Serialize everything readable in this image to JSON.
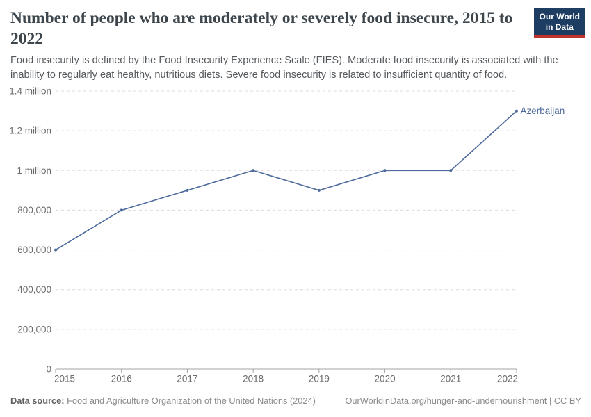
{
  "header": {
    "title": "Number of people who are moderately or severely food insecure, 2015 to 2022",
    "subtitle": "Food insecurity is defined by the Food Insecurity Experience Scale (FIES). Moderate food insecurity is associated with the inability to regularly eat healthy, nutritious diets. Severe food insecurity is related to insufficient quantity of food.",
    "logo": {
      "line1": "Our World",
      "line2": "in Data"
    }
  },
  "chart_data": {
    "type": "line",
    "title": "Number of people who are moderately or severely food insecure, 2015 to 2022",
    "xlabel": "",
    "ylabel": "",
    "xlim": [
      2015,
      2022
    ],
    "ylim": [
      0,
      1400000
    ],
    "grid": true,
    "legend_position": "end-of-line",
    "x_ticks": [
      "2015",
      "2016",
      "2017",
      "2018",
      "2019",
      "2020",
      "2021",
      "2022"
    ],
    "y_ticks": [
      {
        "value": 0,
        "label": "0"
      },
      {
        "value": 200000,
        "label": "200,000"
      },
      {
        "value": 400000,
        "label": "400,000"
      },
      {
        "value": 600000,
        "label": "600,000"
      },
      {
        "value": 800000,
        "label": "800,000"
      },
      {
        "value": 1000000,
        "label": "1 million"
      },
      {
        "value": 1200000,
        "label": "1.2 million"
      },
      {
        "value": 1400000,
        "label": "1.4 million"
      }
    ],
    "series": [
      {
        "name": "Azerbaijan",
        "x": [
          2015,
          2016,
          2017,
          2018,
          2019,
          2020,
          2021,
          2022
        ],
        "values": [
          600000,
          800000,
          900000,
          1000000,
          900000,
          1000000,
          1000000,
          1300000
        ],
        "color": "#4c6a9c"
      }
    ]
  },
  "footer": {
    "source_label": "Data source:",
    "source_text": "Food and Agriculture Organization of the United Nations (2024)",
    "link_text": "OurWorldinData.org/hunger-and-undernourishment | CC BY"
  },
  "colors": {
    "line": "#4c6a9c",
    "logo_bg": "#1d3d63",
    "logo_accent": "#c0332b",
    "gridline": "#dcdcdc",
    "axis": "#a3a3a3",
    "tick_text": "#6b6b6b"
  }
}
